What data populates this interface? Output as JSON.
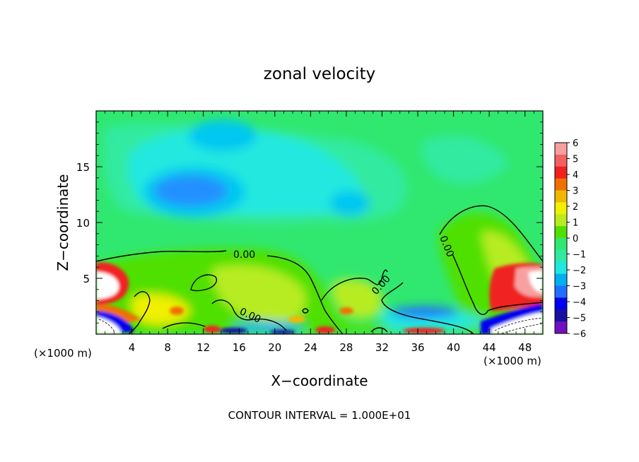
{
  "chart_data": {
    "type": "heatmap",
    "title": "zonal velocity",
    "xlabel": "X−coordinate",
    "ylabel": "Z−coordinate",
    "x_unit_left": "(×1000 m)",
    "x_unit_right": "(×1000 m)",
    "xlim": [
      0,
      50
    ],
    "ylim": [
      0,
      20
    ],
    "x_ticks": [
      "4",
      "8",
      "12",
      "16",
      "20",
      "24",
      "28",
      "32",
      "36",
      "40",
      "44",
      "48"
    ],
    "y_ticks": [
      "5",
      "10",
      "15"
    ],
    "colorbar": {
      "range": [
        -6,
        6
      ],
      "labels": [
        "6",
        "5",
        "4",
        "3",
        "2",
        "1",
        "0",
        "−1",
        "−2",
        "−3",
        "−4",
        "−5",
        "−6"
      ],
      "colors_top_to_bottom": [
        "#f8a0a0",
        "#f26060",
        "#f02020",
        "#f07000",
        "#f0b800",
        "#f0f000",
        "#b8ec20",
        "#50e000",
        "#30e870",
        "#30eaa0",
        "#20e8e0",
        "#00b0f0",
        "#2070ff",
        "#0000f0",
        "#1810a0",
        "#7010c0"
      ]
    },
    "contour_labels": [
      "0.00",
      "0.00",
      "0.00",
      "0.00"
    ],
    "footer": "CONTOUR INTERVAL = 1.000E+01"
  }
}
